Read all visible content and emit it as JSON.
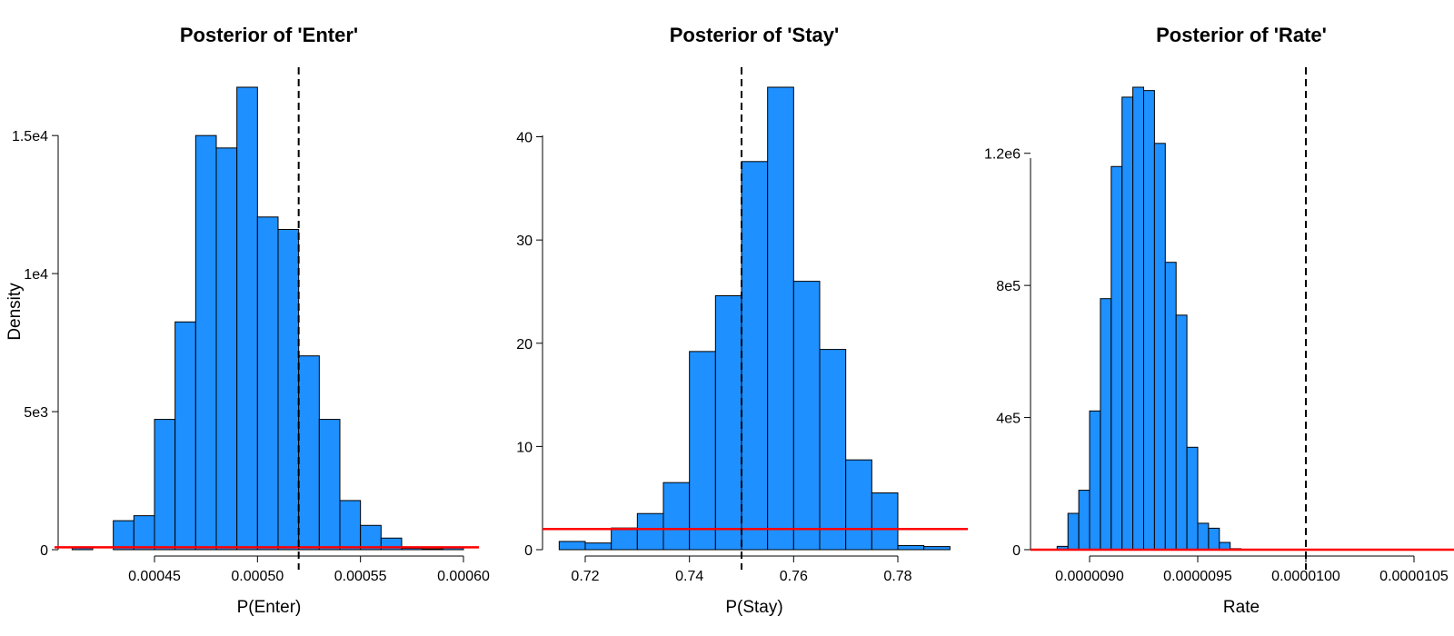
{
  "chart_data": [
    {
      "type": "bar",
      "title": "Posterior of 'Enter'",
      "xlabel": "P(Enter)",
      "ylabel": "Density",
      "xlim": [
        0.00041,
        0.000605
      ],
      "ylim": [
        0,
        16700
      ],
      "bin_start": 0.00041,
      "bin_width": 1e-05,
      "values": [
        60,
        0,
        1050,
        1230,
        4720,
        8250,
        15000,
        14550,
        16750,
        12050,
        11600,
        7020,
        4720,
        1780,
        880,
        420,
        50,
        30,
        60
      ],
      "x_ticks": [
        {
          "value": 0.00045,
          "label": "0.00045"
        },
        {
          "value": 0.0005,
          "label": "0.00050"
        },
        {
          "value": 0.00055,
          "label": "0.00055"
        },
        {
          "value": 0.0006,
          "label": "0.00060"
        }
      ],
      "y_ticks": [
        {
          "value": 0,
          "label": "0"
        },
        {
          "value": 5000,
          "label": "5e3"
        },
        {
          "value": 10000,
          "label": "1e4"
        },
        {
          "value": 15000,
          "label": "1.5e4"
        }
      ],
      "reference_line_x": 0.00052,
      "prior_density": 85,
      "bar_color": "#1E90FF",
      "prior_color": "#FF0000"
    },
    {
      "type": "bar",
      "title": "Posterior of 'Stay'",
      "xlabel": "P(Stay)",
      "ylabel": "",
      "xlim": [
        0.715,
        0.79
      ],
      "ylim": [
        0,
        44.8
      ],
      "bin_start": 0.715,
      "bin_width": 0.005,
      "values": [
        0.8,
        0.65,
        2.1,
        3.5,
        6.5,
        19.2,
        24.6,
        37.6,
        44.8,
        26.0,
        19.4,
        8.7,
        5.5,
        0.4,
        0.3
      ],
      "x_ticks": [
        {
          "value": 0.72,
          "label": "0.72"
        },
        {
          "value": 0.74,
          "label": "0.74"
        },
        {
          "value": 0.76,
          "label": "0.76"
        },
        {
          "value": 0.78,
          "label": "0.78"
        }
      ],
      "y_ticks": [
        {
          "value": 0,
          "label": "0"
        },
        {
          "value": 10,
          "label": "10"
        },
        {
          "value": 20,
          "label": "20"
        },
        {
          "value": 30,
          "label": "30"
        },
        {
          "value": 40,
          "label": "40"
        }
      ],
      "reference_line_x": 0.75,
      "prior_density": 2,
      "bar_color": "#1E90FF",
      "prior_color": "#FF0000"
    },
    {
      "type": "bar",
      "title": "Posterior of 'Rate'",
      "xlabel": "Rate",
      "ylabel": "",
      "xlim": [
        8.85e-06,
        1.05e-05
      ],
      "ylim": [
        0,
        1400000
      ],
      "bin_start": 8.85e-06,
      "bin_width": 5e-08,
      "values": [
        10000,
        110000,
        180000,
        420000,
        760000,
        1160000,
        1370000,
        1400000,
        1390000,
        1230000,
        870000,
        710000,
        310000,
        80000,
        65000,
        22000,
        3000
      ],
      "x_ticks": [
        {
          "value": 9e-06,
          "label": "0.0000090"
        },
        {
          "value": 9.5e-06,
          "label": "0.0000095"
        },
        {
          "value": 1e-05,
          "label": "0.0000100"
        },
        {
          "value": 1.05e-05,
          "label": "0.0000105"
        }
      ],
      "y_ticks": [
        {
          "value": 0,
          "label": "0"
        },
        {
          "value": 400000,
          "label": "4e5"
        },
        {
          "value": 800000,
          "label": "8e5"
        },
        {
          "value": 1200000,
          "label": "1.2e6"
        }
      ],
      "reference_line_x": 1e-05,
      "prior_density": 0,
      "bar_color": "#1E90FF",
      "prior_color": "#FF0000"
    }
  ]
}
